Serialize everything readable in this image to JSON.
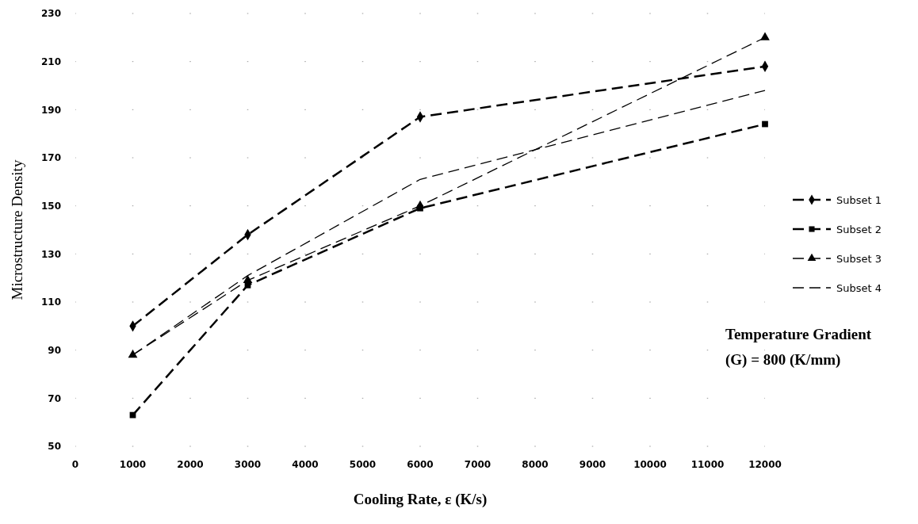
{
  "chart_data": {
    "type": "line",
    "x": [
      1000,
      3000,
      6000,
      12000
    ],
    "series": [
      {
        "name": "Subset 1",
        "color": "#000000",
        "marker": "diamond",
        "line_style": "dashed",
        "values": [
          100,
          138,
          187,
          208
        ]
      },
      {
        "name": "Subset 2",
        "color": "#000000",
        "marker": "square",
        "line_style": "dashed",
        "values": [
          63,
          117,
          149,
          184
        ]
      },
      {
        "name": "Subset 3",
        "color": "#000000",
        "marker": "triangle",
        "line_style": "dashed",
        "values": [
          88,
          119,
          150,
          220
        ]
      },
      {
        "name": "Subset 4",
        "color": "#000000",
        "marker": "none",
        "line_style": "dashed",
        "values": [
          88,
          121,
          161,
          198
        ]
      }
    ],
    "xlabel": "Cooling Rate, ε (K/s)",
    "ylabel": "Microstructure Density",
    "xlim": [
      0,
      12000
    ],
    "xticks": [
      0,
      1000,
      2000,
      3000,
      4000,
      5000,
      6000,
      7000,
      8000,
      9000,
      10000,
      11000,
      12000
    ],
    "ylim": [
      50,
      230
    ],
    "yticks": [
      50,
      70,
      90,
      110,
      130,
      150,
      170,
      190,
      210,
      230
    ],
    "grid": true,
    "legend": "right",
    "annotations": [
      "Temperature Gradient\n(G) = 800 (K/mm)"
    ]
  }
}
